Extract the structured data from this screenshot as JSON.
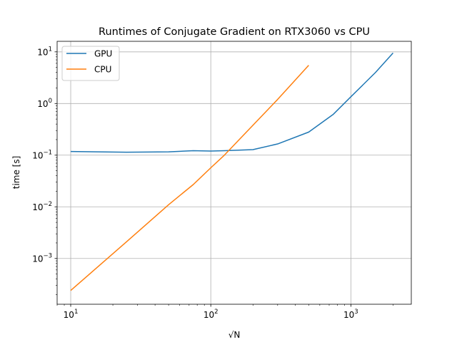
{
  "chart_data": {
    "type": "line",
    "title": "Runtimes of Conjugate Gradient on RTX3060 vs CPU",
    "xlabel": "√N",
    "ylabel": "time [s]",
    "xscale": "log",
    "yscale": "log",
    "xlim": [
      8,
      2700
    ],
    "ylim": [
      0.00013,
      16
    ],
    "grid": true,
    "legend_position": "top-left",
    "x_ticks": [
      {
        "base": "10",
        "exp": "1",
        "value": 10
      },
      {
        "base": "10",
        "exp": "2",
        "value": 100
      },
      {
        "base": "10",
        "exp": "3",
        "value": 1000
      }
    ],
    "y_ticks": [
      {
        "base": "10",
        "exp": "−3",
        "value": 0.001
      },
      {
        "base": "10",
        "exp": "−2",
        "value": 0.01
      },
      {
        "base": "10",
        "exp": "−1",
        "value": 0.1
      },
      {
        "base": "10",
        "exp": "0",
        "value": 1
      },
      {
        "base": "10",
        "exp": "1",
        "value": 10
      }
    ],
    "series": [
      {
        "name": "GPU",
        "color": "#1f77b4",
        "x": [
          10,
          25,
          50,
          75,
          100,
          125,
          200,
          300,
          500,
          750,
          1000,
          1500,
          2000
        ],
        "y": [
          0.118,
          0.114,
          0.116,
          0.122,
          0.12,
          0.122,
          0.128,
          0.165,
          0.28,
          0.62,
          1.35,
          4.0,
          9.5
        ]
      },
      {
        "name": "CPU",
        "color": "#ff7f0e",
        "x": [
          10,
          25,
          50,
          75,
          100,
          125,
          200,
          300,
          500
        ],
        "y": [
          0.00024,
          0.0021,
          0.011,
          0.027,
          0.057,
          0.1,
          0.38,
          1.2,
          5.5
        ]
      }
    ]
  }
}
